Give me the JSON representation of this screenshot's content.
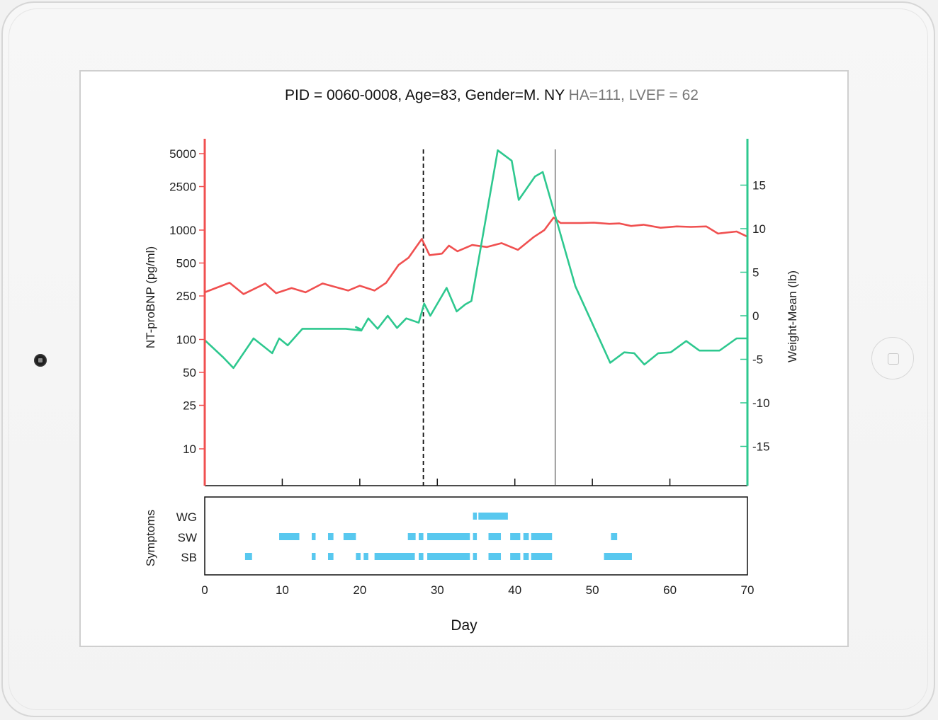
{
  "title": {
    "main": "PID = 0060-0008, Age=83, Gender=M. NY",
    "extra": " HA=111, LVEF = 62"
  },
  "chart_data": {
    "type": "line",
    "xlabel": "Day",
    "xlim": [
      0,
      70
    ],
    "x_ticks": [
      0,
      10,
      20,
      30,
      40,
      50,
      60,
      70
    ],
    "y_left": {
      "label": "NT-proBNP (pg/ml)",
      "scale": "log",
      "ticks": [
        10,
        25,
        50,
        100,
        250,
        500,
        1000,
        2500,
        5000
      ],
      "color": "#f05050"
    },
    "y_right": {
      "label": "Weight-Mean (lb)",
      "ticks": [
        -15,
        -10,
        -5,
        0,
        5,
        10,
        15
      ],
      "color": "#2ec88f"
    },
    "series": [
      {
        "axis": "left",
        "color": "#f05050",
        "points": [
          [
            0,
            270
          ],
          [
            3.2,
            330
          ],
          [
            5,
            260
          ],
          [
            7.8,
            325
          ],
          [
            9.2,
            265
          ],
          [
            11.2,
            295
          ],
          [
            13,
            270
          ],
          [
            15.2,
            325
          ],
          [
            18.5,
            280
          ],
          [
            20,
            310
          ],
          [
            21.9,
            280
          ],
          [
            23.4,
            330
          ],
          [
            25,
            480
          ],
          [
            26.3,
            560
          ],
          [
            28,
            830
          ],
          [
            29,
            590
          ],
          [
            30.6,
            610
          ],
          [
            31.5,
            720
          ],
          [
            32.6,
            640
          ],
          [
            34.5,
            730
          ],
          [
            36.4,
            700
          ],
          [
            38.3,
            760
          ],
          [
            40.4,
            660
          ],
          [
            42.4,
            860
          ],
          [
            43.8,
            1000
          ],
          [
            45,
            1300
          ],
          [
            45.9,
            1160
          ],
          [
            48.5,
            1160
          ],
          [
            50.2,
            1170
          ],
          [
            52.2,
            1140
          ],
          [
            53.5,
            1150
          ],
          [
            55,
            1090
          ],
          [
            56.6,
            1120
          ],
          [
            58.8,
            1050
          ],
          [
            60.9,
            1080
          ],
          [
            62.7,
            1070
          ],
          [
            64.7,
            1080
          ],
          [
            66.2,
            930
          ],
          [
            68.6,
            970
          ],
          [
            70,
            870
          ]
        ]
      },
      {
        "axis": "right",
        "color": "#2ec88f",
        "points": [
          [
            0,
            -2.8
          ],
          [
            2.4,
            -4.8
          ],
          [
            3.7,
            -6
          ],
          [
            6.3,
            -2.6
          ],
          [
            8.7,
            -4.3
          ],
          [
            9.6,
            -2.6
          ],
          [
            10.7,
            -3.4
          ],
          [
            12.6,
            -1.5
          ],
          [
            13,
            -1.5
          ],
          [
            14.9,
            -1.5
          ],
          [
            16.9,
            -1.5
          ],
          [
            17.5,
            -1.5
          ],
          [
            18.2,
            -1.5
          ],
          [
            20.2,
            -1.7
          ],
          [
            20,
            -1.5
          ],
          [
            19.5,
            -1.3
          ],
          [
            20.2,
            -1.7
          ],
          [
            21.1,
            -0.3
          ],
          [
            22.3,
            -1.5
          ],
          [
            23.6,
            0
          ],
          [
            24.8,
            -1.4
          ],
          [
            26,
            -0.3
          ],
          [
            27.6,
            -0.8
          ],
          [
            28.3,
            1.4
          ],
          [
            29.1,
            0
          ],
          [
            31.2,
            3.2
          ],
          [
            32.5,
            0.5
          ],
          [
            33.6,
            1.3
          ],
          [
            34.4,
            1.7
          ],
          [
            37.8,
            19
          ],
          [
            39.6,
            17.8
          ],
          [
            40.5,
            13.3
          ],
          [
            42.6,
            16
          ],
          [
            43.6,
            16.5
          ],
          [
            45.3,
            11.2
          ],
          [
            47.8,
            3.4
          ],
          [
            52.3,
            -5.4
          ],
          [
            54.1,
            -4.2
          ],
          [
            55.4,
            -4.3
          ],
          [
            56.7,
            -5.6
          ],
          [
            58.5,
            -4.3
          ],
          [
            60.1,
            -4.2
          ],
          [
            62.1,
            -2.9
          ],
          [
            63.8,
            -4
          ],
          [
            66.4,
            -4
          ],
          [
            68.6,
            -2.6
          ],
          [
            70,
            -2.6
          ]
        ]
      }
    ],
    "reference_lines": [
      {
        "x": 28.2,
        "style": "dashed"
      },
      {
        "x": 45.2,
        "style": "solid"
      }
    ],
    "symptoms": {
      "ylabel": "Symptoms",
      "rows": [
        "WG",
        "SW",
        "SB"
      ],
      "color": "#58c8ef",
      "intervals": {
        "WG": [
          [
            34.6,
            35.1
          ],
          [
            35.3,
            39.1
          ]
        ],
        "SW": [
          [
            9.6,
            12.2
          ],
          [
            13.8,
            14.3
          ],
          [
            15.9,
            16.6
          ],
          [
            17.9,
            19.5
          ],
          [
            26.2,
            27.2
          ],
          [
            27.6,
            28.2
          ],
          [
            28.7,
            34.2
          ],
          [
            34.6,
            35.1
          ],
          [
            36.6,
            38.2
          ],
          [
            39.4,
            40.7
          ],
          [
            41.1,
            41.8
          ],
          [
            42.1,
            44.8
          ],
          [
            52.4,
            53.2
          ]
        ],
        "SB": [
          [
            5.2,
            6.1
          ],
          [
            13.8,
            14.3
          ],
          [
            15.9,
            16.6
          ],
          [
            19.5,
            20.1
          ],
          [
            20.5,
            21.1
          ],
          [
            21.9,
            27.1
          ],
          [
            27.6,
            28.2
          ],
          [
            28.7,
            34.2
          ],
          [
            34.6,
            35.1
          ],
          [
            36.6,
            38.2
          ],
          [
            39.4,
            40.7
          ],
          [
            41.1,
            41.8
          ],
          [
            42.1,
            44.8
          ],
          [
            51.5,
            55.1
          ]
        ]
      }
    }
  }
}
